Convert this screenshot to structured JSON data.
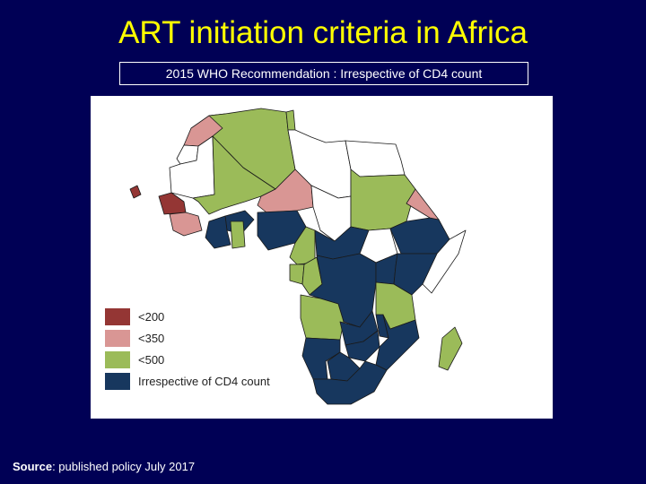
{
  "title": "ART initiation criteria in Africa",
  "subtitle": "2015 WHO Recommendation : Irrespective of CD4 count",
  "colors": {
    "background": "#000055",
    "title": "#ffff00",
    "lt200": "#943634",
    "lt350": "#d99694",
    "lt500": "#9bbb59",
    "irrespective": "#17375e",
    "none": "#ffffff"
  },
  "legend": [
    {
      "key": "lt200",
      "label": "<200"
    },
    {
      "key": "lt350",
      "label": "<350"
    },
    {
      "key": "lt500",
      "label": "<500"
    },
    {
      "key": "irrespective",
      "label": "Irrespective of CD4 count"
    }
  ],
  "regions": [
    {
      "name": "Morocco",
      "category": "lt350"
    },
    {
      "name": "Algeria",
      "category": "lt500"
    },
    {
      "name": "Tunisia",
      "category": "lt500"
    },
    {
      "name": "Libya",
      "category": "none"
    },
    {
      "name": "Egypt",
      "category": "none"
    },
    {
      "name": "Western Sahara",
      "category": "none"
    },
    {
      "name": "Mauritania",
      "category": "none"
    },
    {
      "name": "Mali",
      "category": "lt500"
    },
    {
      "name": "Niger",
      "category": "lt350"
    },
    {
      "name": "Chad",
      "category": "none"
    },
    {
      "name": "Sudan",
      "category": "lt500"
    },
    {
      "name": "Senegal",
      "category": "lt200"
    },
    {
      "name": "Burkina Faso",
      "category": "irrespective"
    },
    {
      "name": "Guinea",
      "category": "lt350"
    },
    {
      "name": "Cote d'Ivoire",
      "category": "irrespective"
    },
    {
      "name": "Ghana",
      "category": "lt500"
    },
    {
      "name": "Nigeria",
      "category": "irrespective"
    },
    {
      "name": "Cameroon",
      "category": "lt500"
    },
    {
      "name": "Central African Republic",
      "category": "irrespective"
    },
    {
      "name": "South Sudan",
      "category": "none"
    },
    {
      "name": "Ethiopia",
      "category": "irrespective"
    },
    {
      "name": "Eritrea",
      "category": "lt350"
    },
    {
      "name": "Somalia",
      "category": "none"
    },
    {
      "name": "Gabon",
      "category": "lt500"
    },
    {
      "name": "Congo",
      "category": "lt500"
    },
    {
      "name": "DR Congo",
      "category": "irrespective"
    },
    {
      "name": "Uganda",
      "category": "irrespective"
    },
    {
      "name": "Kenya",
      "category": "irrespective"
    },
    {
      "name": "Tanzania",
      "category": "lt500"
    },
    {
      "name": "Angola",
      "category": "lt500"
    },
    {
      "name": "Zambia",
      "category": "irrespective"
    },
    {
      "name": "Malawi",
      "category": "irrespective"
    },
    {
      "name": "Mozambique",
      "category": "irrespective"
    },
    {
      "name": "Zimbabwe",
      "category": "irrespective"
    },
    {
      "name": "Namibia",
      "category": "irrespective"
    },
    {
      "name": "Botswana",
      "category": "irrespective"
    },
    {
      "name": "South Africa",
      "category": "irrespective"
    },
    {
      "name": "Madagascar",
      "category": "lt500"
    },
    {
      "name": "Cape Verde",
      "category": "lt200"
    }
  ],
  "source": {
    "label": "Source",
    "text": ": published policy July 2017"
  }
}
